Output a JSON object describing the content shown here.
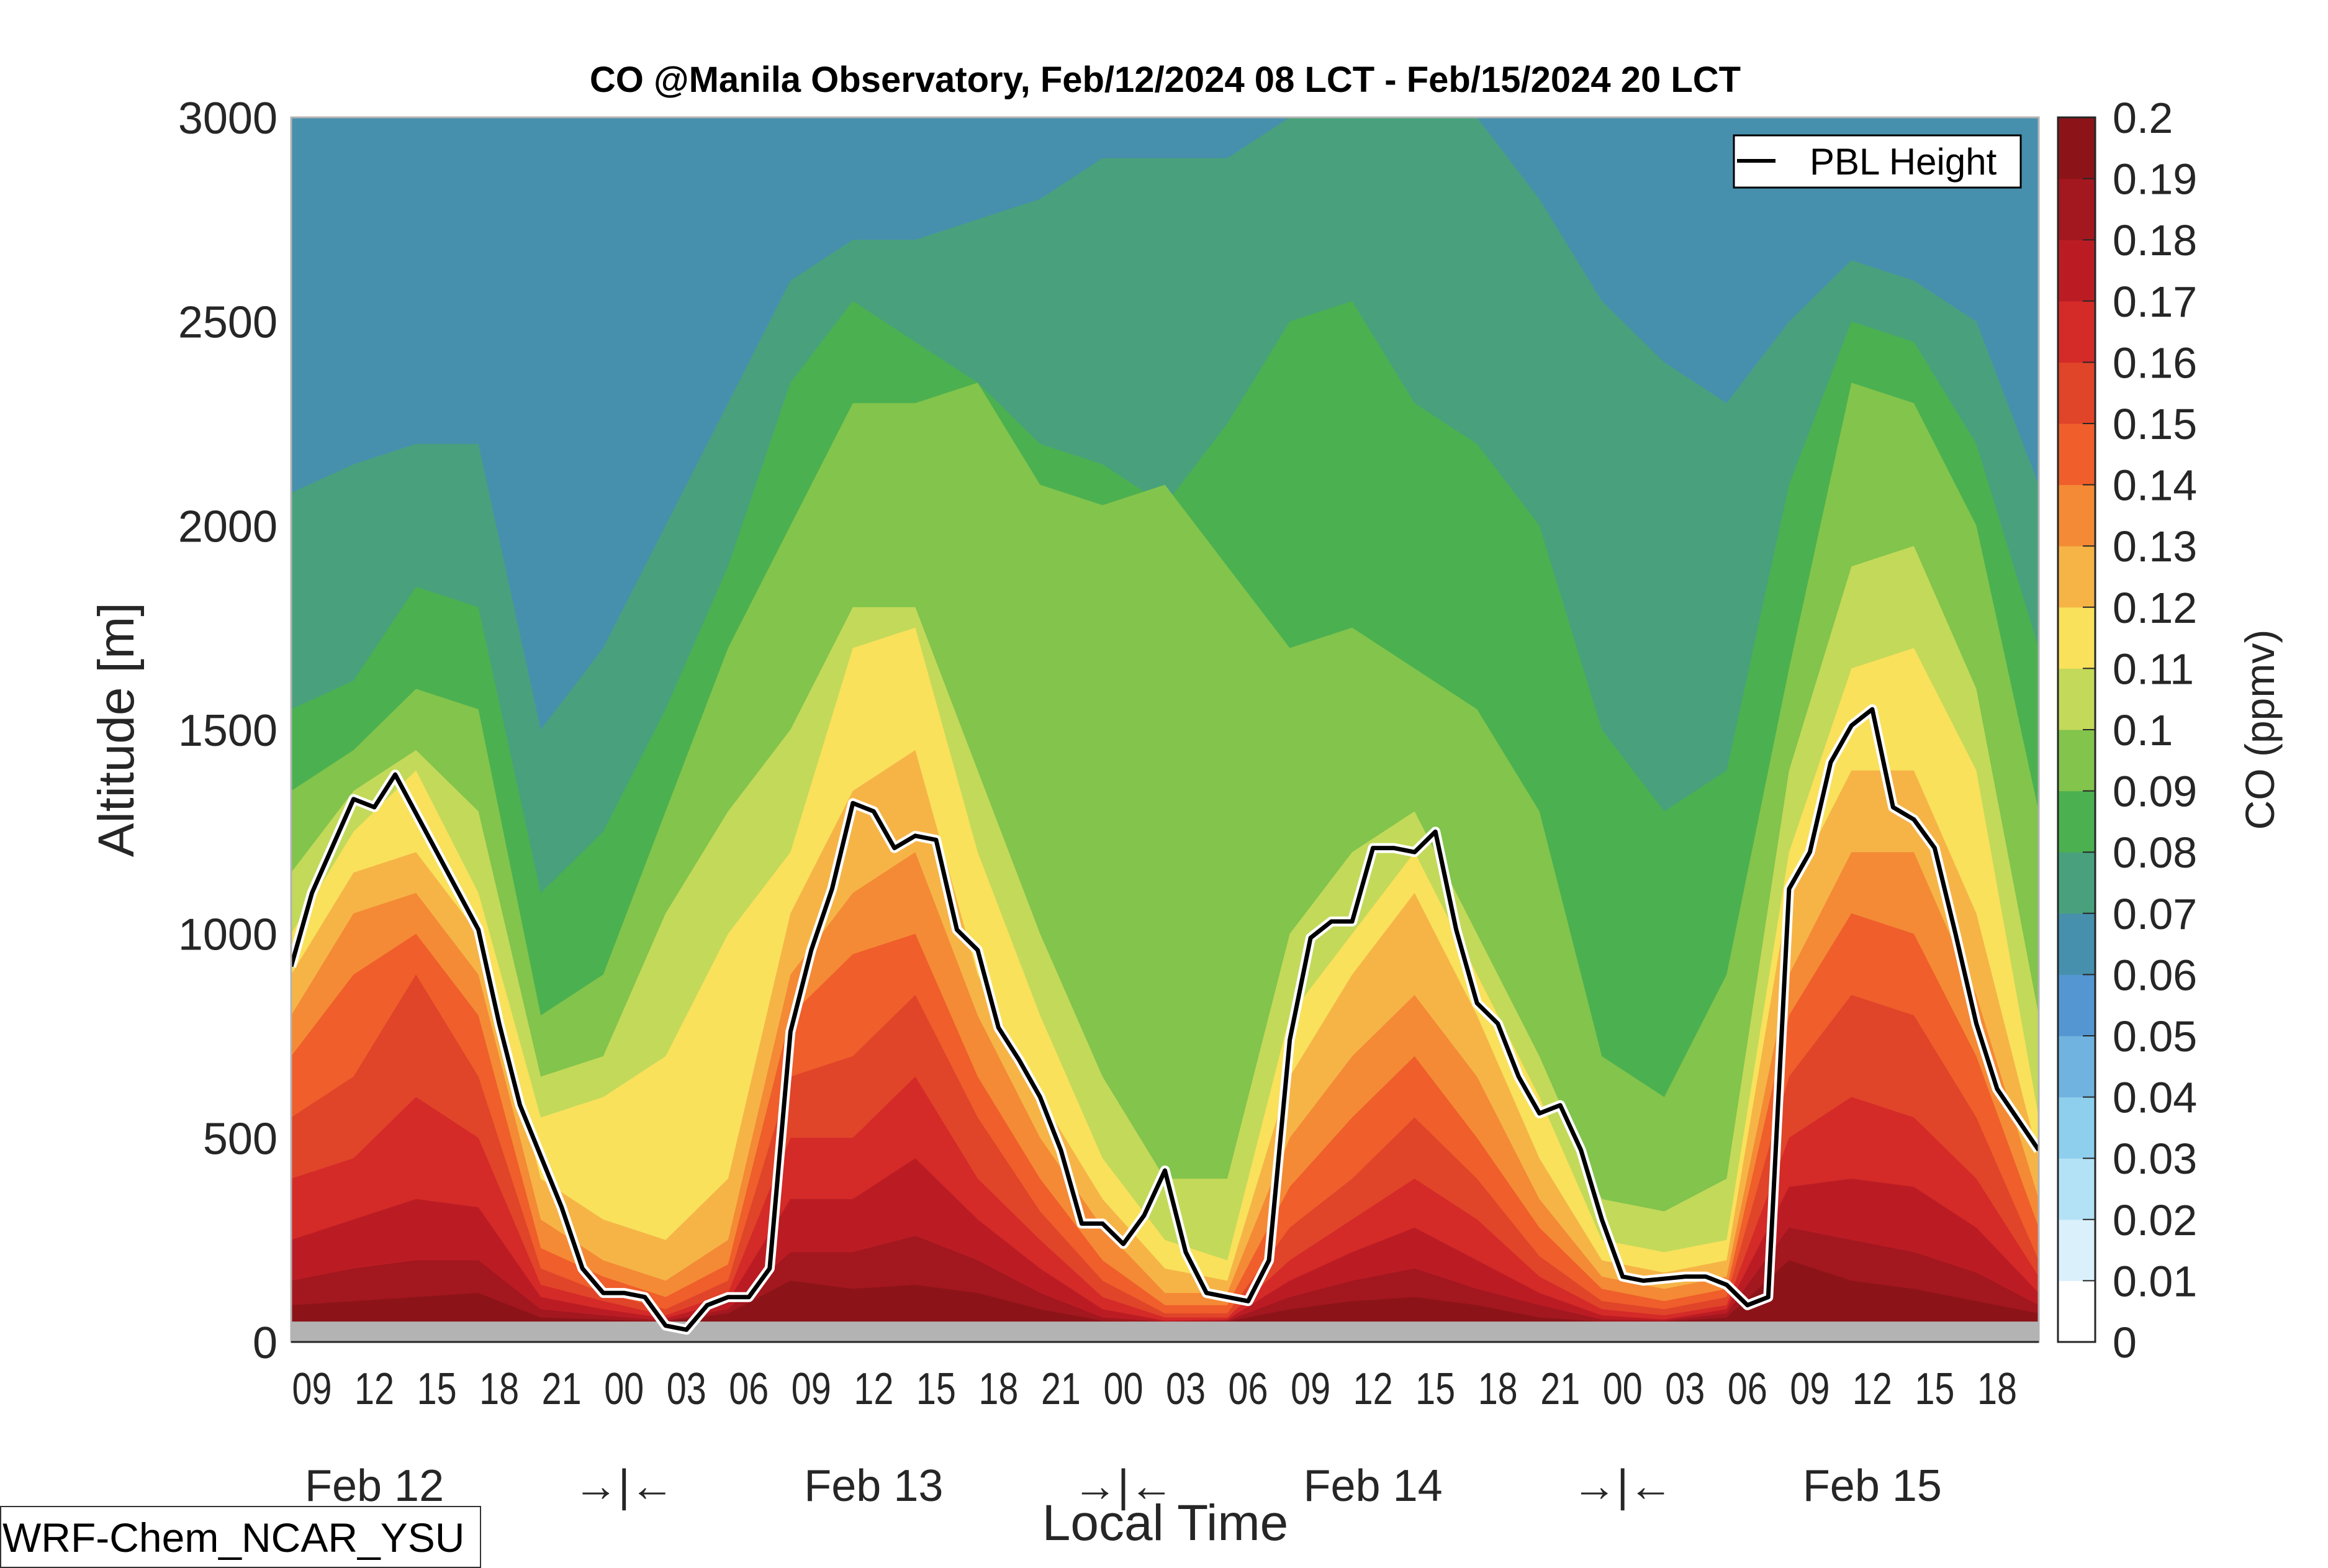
{
  "chart_data": {
    "type": "heatmap",
    "subtype": "filled-contour time-height cross section with line overlay",
    "title": "CO @Manila Observatory, Feb/12/2024 08 LCT - Feb/15/2024 20 LCT",
    "xlabel": "Local Time",
    "ylabel": "Altitude [m]",
    "ylim": [
      0,
      3000
    ],
    "yticks": [
      0,
      500,
      1000,
      1500,
      2000,
      2500,
      3000
    ],
    "x_range_hours": [
      0,
      84
    ],
    "x_start": "Feb/12/2024 08 LCT",
    "xtick_labels": [
      "09",
      "12",
      "15",
      "18",
      "21",
      "00",
      "03",
      "06",
      "09",
      "12",
      "15",
      "18",
      "21",
      "00",
      "03",
      "06",
      "09",
      "12",
      "15",
      "18",
      "21",
      "00",
      "03",
      "06",
      "09",
      "12",
      "15",
      "18"
    ],
    "xtick_hours": [
      1,
      4,
      7,
      10,
      13,
      16,
      19,
      22,
      25,
      28,
      31,
      34,
      37,
      40,
      43,
      46,
      49,
      52,
      55,
      58,
      61,
      64,
      67,
      70,
      73,
      76,
      79,
      82
    ],
    "date_labels": [
      {
        "text": "Feb 12",
        "hour": 4
      },
      {
        "text": "→|←",
        "hour": 16
      },
      {
        "text": "Feb 13",
        "hour": 28
      },
      {
        "text": "→|←",
        "hour": 40
      },
      {
        "text": "Feb 14",
        "hour": 52
      },
      {
        "text": "→|←",
        "hour": 64
      },
      {
        "text": "Feb 15",
        "hour": 76
      }
    ],
    "ground_band_m": 50,
    "ground_color": "#b3b3b3",
    "colorbar": {
      "label": "CO (ppmv)",
      "levels": [
        0,
        0.01,
        0.02,
        0.03,
        0.04,
        0.05,
        0.06,
        0.07,
        0.08,
        0.09,
        0.1,
        0.11,
        0.12,
        0.13,
        0.14,
        0.15,
        0.16,
        0.17,
        0.18,
        0.19,
        0.2
      ],
      "tick_labels": [
        "0",
        "0.01",
        "0.02",
        "0.03",
        "0.04",
        "0.05",
        "0.06",
        "0.07",
        "0.08",
        "0.09",
        "0.1",
        "0.11",
        "0.12",
        "0.13",
        "0.14",
        "0.15",
        "0.16",
        "0.17",
        "0.18",
        "0.19",
        "0.2"
      ],
      "colors": [
        "#ffffff",
        "#daf0fb",
        "#b3e2f6",
        "#8ecfee",
        "#70b3e0",
        "#5496d1",
        "#4690ad",
        "#48a17c",
        "#4bb050",
        "#82c44c",
        "#c3d95a",
        "#f9e15b",
        "#f6b447",
        "#f48a35",
        "#ef5e2b",
        "#e04429",
        "#d42a28",
        "#bb1c24",
        "#a3171f",
        "#8c1419"
      ]
    },
    "contour_profiles_note": "Approximate altitude (m) of the top of the region where CO exceeds each level, sampled every 3 h from hour 0 to 84",
    "contour_hours": [
      0,
      3,
      6,
      9,
      12,
      15,
      18,
      21,
      24,
      27,
      30,
      33,
      36,
      39,
      42,
      45,
      48,
      51,
      54,
      57,
      60,
      63,
      66,
      69,
      72,
      75,
      78,
      81,
      84
    ],
    "contours": [
      {
        "level": 0.06,
        "tops": [
          2750,
          3000,
          3000,
          3000,
          3000,
          2700,
          2200,
          3000,
          3000,
          3000,
          3000,
          3000,
          3000,
          3000,
          3000,
          3000,
          3000,
          3000,
          3000,
          3000,
          3000,
          3000,
          3000,
          3000,
          3000,
          3000,
          3000,
          3000,
          3000
        ]
      },
      {
        "level": 0.07,
        "tops": [
          2080,
          2150,
          2200,
          2200,
          1500,
          1700,
          2000,
          2300,
          2600,
          2700,
          2700,
          2750,
          2800,
          2900,
          2900,
          2900,
          3000,
          3000,
          3000,
          3000,
          2800,
          2550,
          2400,
          2300,
          2500,
          2650,
          2600,
          2500,
          2100
        ]
      },
      {
        "level": 0.08,
        "tops": [
          1550,
          1620,
          1850,
          1800,
          1100,
          1250,
          1550,
          1900,
          2350,
          2550,
          2450,
          2350,
          2200,
          2150,
          2050,
          2250,
          2500,
          2550,
          2300,
          2200,
          2000,
          1500,
          1300,
          1400,
          2100,
          2500,
          2450,
          2200,
          1700
        ]
      },
      {
        "level": 0.09,
        "tops": [
          1350,
          1450,
          1600,
          1550,
          800,
          900,
          1300,
          1700,
          2000,
          2300,
          2300,
          2350,
          2100,
          2050,
          2100,
          1900,
          1700,
          1750,
          1650,
          1550,
          1300,
          700,
          600,
          900,
          1650,
          2350,
          2300,
          2000,
          1300
        ]
      },
      {
        "level": 0.1,
        "tops": [
          1150,
          1350,
          1450,
          1300,
          650,
          700,
          1050,
          1300,
          1500,
          1800,
          1800,
          1400,
          1000,
          650,
          400,
          400,
          1000,
          1200,
          1300,
          1000,
          700,
          350,
          320,
          400,
          1400,
          1900,
          1950,
          1600,
          800
        ]
      },
      {
        "level": 0.11,
        "tops": [
          1000,
          1250,
          1400,
          1100,
          550,
          600,
          700,
          1000,
          1200,
          1700,
          1750,
          1200,
          800,
          450,
          250,
          200,
          800,
          1000,
          1200,
          900,
          600,
          250,
          220,
          250,
          1200,
          1650,
          1700,
          1400,
          550
        ]
      },
      {
        "level": 0.12,
        "tops": [
          900,
          1150,
          1200,
          1000,
          400,
          300,
          250,
          400,
          1050,
          1350,
          1450,
          900,
          600,
          350,
          180,
          150,
          650,
          900,
          1100,
          800,
          450,
          200,
          170,
          200,
          1100,
          1400,
          1400,
          1050,
          450
        ]
      },
      {
        "level": 0.13,
        "tops": [
          800,
          1050,
          1100,
          900,
          300,
          200,
          150,
          250,
          900,
          1100,
          1200,
          800,
          500,
          280,
          120,
          120,
          500,
          700,
          850,
          650,
          350,
          160,
          130,
          160,
          900,
          1200,
          1200,
          850,
          350
        ]
      },
      {
        "level": 0.14,
        "tops": [
          700,
          900,
          1000,
          800,
          230,
          160,
          110,
          190,
          800,
          950,
          1000,
          650,
          400,
          200,
          90,
          90,
          380,
          550,
          700,
          500,
          280,
          130,
          100,
          130,
          800,
          1050,
          1000,
          700,
          280
        ]
      },
      {
        "level": 0.15,
        "tops": [
          550,
          650,
          900,
          650,
          180,
          120,
          80,
          150,
          650,
          700,
          850,
          550,
          320,
          150,
          70,
          70,
          280,
          400,
          550,
          400,
          210,
          100,
          80,
          110,
          650,
          850,
          800,
          550,
          200
        ]
      },
      {
        "level": 0.16,
        "tops": [
          400,
          450,
          600,
          500,
          140,
          100,
          65,
          120,
          500,
          500,
          650,
          400,
          250,
          110,
          60,
          60,
          200,
          300,
          400,
          300,
          160,
          80,
          65,
          90,
          500,
          600,
          550,
          400,
          160
        ]
      },
      {
        "level": 0.17,
        "tops": [
          250,
          300,
          350,
          330,
          110,
          80,
          58,
          100,
          350,
          350,
          450,
          300,
          180,
          80,
          52,
          55,
          150,
          220,
          280,
          200,
          120,
          65,
          55,
          80,
          380,
          400,
          380,
          280,
          120
        ]
      },
      {
        "level": 0.18,
        "tops": [
          150,
          180,
          200,
          200,
          80,
          65,
          52,
          80,
          220,
          220,
          260,
          200,
          120,
          60,
          50,
          52,
          110,
          150,
          180,
          130,
          90,
          55,
          52,
          70,
          280,
          250,
          220,
          170,
          90
        ]
      },
      {
        "level": 0.19,
        "tops": [
          90,
          100,
          110,
          120,
          60,
          55,
          50,
          70,
          150,
          130,
          140,
          120,
          80,
          52,
          50,
          50,
          80,
          100,
          110,
          90,
          60,
          50,
          50,
          60,
          200,
          150,
          130,
          100,
          70
        ]
      }
    ],
    "series": [
      {
        "name": "PBL Height",
        "color": "#000000",
        "hours": [
          0,
          1,
          3,
          4,
          5,
          7,
          9,
          10,
          11,
          13,
          14,
          15,
          16,
          17,
          18,
          19,
          20,
          21,
          22,
          23,
          24,
          25,
          26,
          27,
          28,
          29,
          30,
          31,
          32,
          33,
          34,
          35,
          36,
          37,
          38,
          39,
          40,
          41,
          42,
          43,
          44,
          46,
          47,
          48,
          49,
          50,
          51,
          52,
          53,
          54,
          55,
          56,
          57,
          58,
          59,
          60,
          61,
          62,
          63,
          64,
          65,
          67,
          68,
          69,
          70,
          71,
          72,
          73,
          74,
          75,
          76,
          77,
          78,
          79,
          80,
          81,
          82,
          84
        ],
        "values": [
          920,
          1100,
          1330,
          1310,
          1390,
          1200,
          1010,
          780,
          580,
          330,
          180,
          120,
          120,
          110,
          40,
          30,
          90,
          110,
          110,
          180,
          760,
          960,
          1110,
          1320,
          1300,
          1210,
          1240,
          1230,
          1010,
          960,
          770,
          690,
          600,
          470,
          290,
          290,
          240,
          310,
          420,
          220,
          120,
          100,
          200,
          740,
          990,
          1030,
          1030,
          1210,
          1210,
          1200,
          1250,
          1010,
          830,
          780,
          650,
          560,
          580,
          470,
          300,
          160,
          150,
          160,
          160,
          140,
          90,
          110,
          1110,
          1200,
          1420,
          1510,
          1550,
          1310,
          1280,
          1210,
          1000,
          780,
          620,
          470
        ]
      }
    ],
    "legend": {
      "entries": [
        "PBL Height"
      ],
      "position": "top-right"
    },
    "annotation": "WRF-Chem_NCAR_YSU"
  }
}
